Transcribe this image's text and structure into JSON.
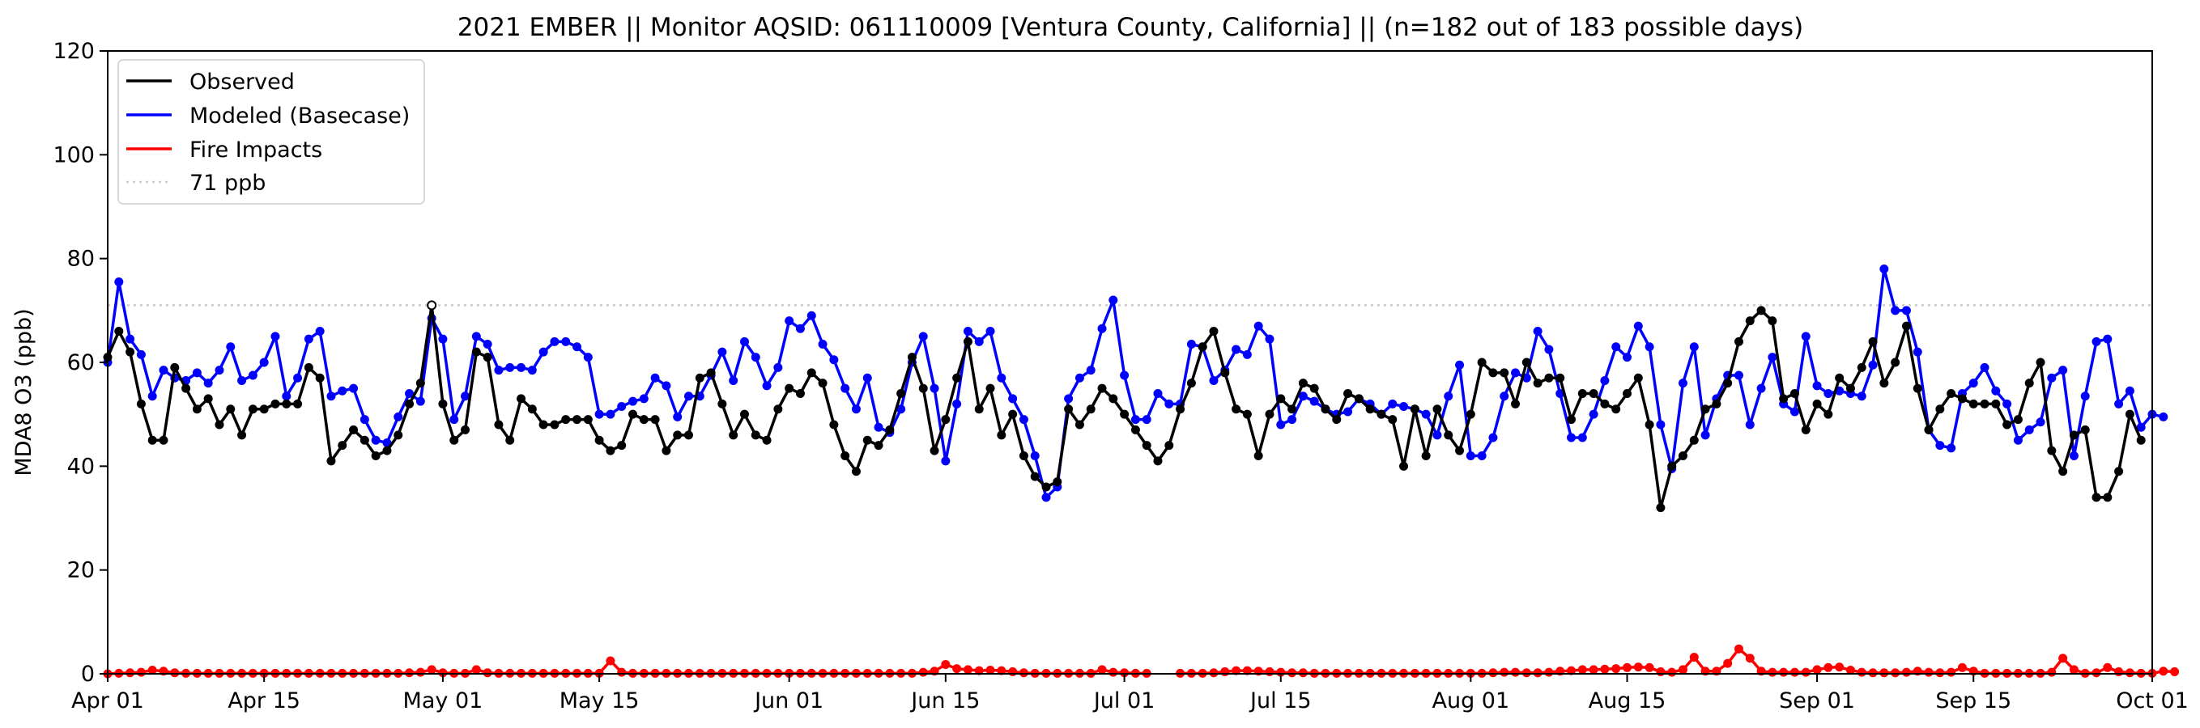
{
  "chart_data": {
    "type": "line",
    "title": "2021 EMBER || Monitor AQSID: 061110009 [Ventura County, California] || (n=182 out of 183 possible days)",
    "xlabel": "",
    "ylabel": "MDA8 O3 (ppb)",
    "x_start": "2021-04-01",
    "x_end": "2021-10-01",
    "xlim": [
      "2021-04-01",
      "2021-10-01"
    ],
    "ylim": [
      0,
      120
    ],
    "yticks": [
      0,
      20,
      40,
      60,
      80,
      100,
      120
    ],
    "xticks": [
      {
        "date": "2021-04-01",
        "label": "Apr 01"
      },
      {
        "date": "2021-04-15",
        "label": "Apr 15"
      },
      {
        "date": "2021-05-01",
        "label": "May 01"
      },
      {
        "date": "2021-05-15",
        "label": "May 15"
      },
      {
        "date": "2021-06-01",
        "label": "Jun 01"
      },
      {
        "date": "2021-06-15",
        "label": "Jun 15"
      },
      {
        "date": "2021-07-01",
        "label": "Jul 01"
      },
      {
        "date": "2021-07-15",
        "label": "Jul 15"
      },
      {
        "date": "2021-08-01",
        "label": "Aug 01"
      },
      {
        "date": "2021-08-15",
        "label": "Aug 15"
      },
      {
        "date": "2021-09-01",
        "label": "Sep 01"
      },
      {
        "date": "2021-09-15",
        "label": "Sep 15"
      },
      {
        "date": "2021-10-01",
        "label": "Oct 01"
      }
    ],
    "grid": false,
    "legend_position": "top-left",
    "threshold": {
      "label": "71 ppb",
      "value": 71,
      "color": "#cccccc"
    },
    "series": [
      {
        "name": "Observed",
        "color": "#000000",
        "values": [
          61,
          66,
          62,
          52,
          45,
          45,
          59,
          55,
          51,
          53,
          48,
          51,
          46,
          51,
          51,
          52,
          52,
          52,
          59,
          57,
          41,
          44,
          47,
          45,
          42,
          43,
          46,
          52,
          56,
          71,
          52,
          45,
          47,
          62,
          61,
          48,
          45,
          53,
          51,
          48,
          48,
          49,
          49,
          49,
          45,
          43,
          44,
          50,
          49,
          49,
          43,
          46,
          46,
          57,
          58,
          52,
          46,
          50,
          46,
          45,
          51,
          55,
          54,
          58,
          56,
          48,
          42,
          39,
          45,
          44,
          47,
          54,
          61,
          55,
          43,
          49,
          57,
          64,
          51,
          55,
          46,
          50,
          42,
          38,
          36,
          37,
          51,
          48,
          51,
          55,
          53,
          50,
          47,
          44,
          41,
          44,
          51,
          56,
          63,
          66,
          58,
          51,
          50,
          42,
          50,
          53,
          51,
          56,
          55,
          51,
          49,
          54,
          53,
          51,
          50,
          49,
          40,
          51,
          42,
          51,
          46,
          43,
          50,
          60,
          58,
          58,
          52,
          60,
          56,
          57,
          57,
          49,
          54,
          54,
          52,
          51,
          54,
          57,
          48,
          32,
          40,
          42,
          45,
          51,
          52,
          56,
          64,
          68,
          70,
          68,
          53,
          54,
          47,
          52,
          50,
          57,
          55,
          59,
          64,
          56,
          60,
          67,
          55,
          47,
          51,
          54,
          53,
          52,
          52,
          52,
          48,
          49,
          56,
          60,
          43,
          39,
          46,
          47,
          34,
          34,
          39,
          50,
          45
        ],
        "missing_index": 181
      },
      {
        "name": "Modeled (Basecase)",
        "color": "#0000ff",
        "values": [
          60,
          75.5,
          64.5,
          61.5,
          53.5,
          58.5,
          57,
          56.5,
          58,
          56,
          58.5,
          63,
          56.5,
          57.5,
          60,
          65,
          53.5,
          57,
          64.5,
          66,
          53.5,
          54.5,
          55,
          49,
          45,
          44.5,
          49.5,
          54,
          52.5,
          68.5,
          64.5,
          49,
          53.5,
          65,
          63.5,
          58.5,
          59,
          59,
          58.5,
          62,
          64,
          64,
          63,
          61,
          50,
          50,
          51.5,
          52.5,
          53,
          57,
          55.5,
          49.5,
          53.5,
          53.5,
          57.5,
          62,
          56.5,
          64,
          61,
          55.5,
          59,
          68,
          66.5,
          69,
          63.5,
          60.5,
          55,
          51,
          57,
          47.5,
          46.5,
          51,
          60,
          65,
          55,
          41,
          52,
          66,
          64,
          66,
          57,
          53,
          49,
          42,
          34,
          36,
          53,
          57,
          58.5,
          66.5,
          72,
          57.5,
          49,
          49,
          54,
          52,
          52,
          63.5,
          63,
          56.5,
          58.5,
          62.5,
          61.5,
          67,
          64.5,
          48,
          49,
          53.5,
          52.5,
          51,
          50,
          50.5,
          53,
          52,
          50,
          52,
          51.5,
          51,
          50,
          46,
          53.5,
          59.5,
          42,
          42,
          45.5,
          53.5,
          58,
          57,
          66,
          62.5,
          54,
          45.5,
          45.5,
          50,
          56.5,
          63,
          61,
          67,
          63,
          48,
          39.5,
          56,
          63,
          46,
          53,
          57.5,
          57.5,
          48,
          55,
          61,
          52,
          50.5,
          65,
          55.5,
          54,
          54.5,
          54,
          53.5,
          59.5,
          78,
          70,
          70,
          62,
          47,
          44,
          43.5,
          54,
          56,
          59,
          54.5,
          52,
          45,
          47,
          48.5,
          57,
          58.5,
          42,
          53.5,
          64,
          64.5,
          52,
          54.5,
          47.5,
          50,
          49.5
        ],
        "missing_index": null
      },
      {
        "name": "Fire Impacts",
        "color": "#ff0000",
        "values": [
          0,
          0.1,
          0.2,
          0.3,
          0.7,
          0.5,
          0.2,
          0.1,
          0.1,
          0.1,
          0.1,
          0.1,
          0.1,
          0.1,
          0.1,
          0.1,
          0.1,
          0.1,
          0.1,
          0.1,
          0.1,
          0.1,
          0.1,
          0.1,
          0.1,
          0.1,
          0.1,
          0.2,
          0.3,
          0.8,
          0.2,
          0.1,
          0.1,
          0.8,
          0.2,
          0.1,
          0.1,
          0.1,
          0.1,
          0.1,
          0.1,
          0.1,
          0.1,
          0.1,
          0.1,
          2.5,
          0.3,
          0.1,
          0.1,
          0.1,
          0.1,
          0.1,
          0.1,
          0.1,
          0.1,
          0.1,
          0.1,
          0.1,
          0.1,
          0.1,
          0.1,
          0.1,
          0.1,
          0.1,
          0.1,
          0.1,
          0.1,
          0.1,
          0.1,
          0.1,
          0.1,
          0.1,
          0.1,
          0.3,
          0.5,
          1.8,
          1,
          0.8,
          0.6,
          0.7,
          0.6,
          0.4,
          0.2,
          0.1,
          0.1,
          0.1,
          0.1,
          0.1,
          0.1,
          0.8,
          0.3,
          0.2,
          0.1,
          0.1,
          null,
          null,
          0.1,
          0.1,
          0.1,
          0.2,
          0.4,
          0.6,
          0.6,
          0.5,
          0.4,
          0.3,
          0.2,
          0.2,
          0.1,
          0.1,
          0.1,
          0.1,
          0.1,
          0.1,
          0.1,
          0.1,
          0.1,
          0.1,
          0.1,
          0.1,
          0.1,
          0.1,
          0.1,
          0.1,
          0.2,
          0.3,
          0.3,
          0.2,
          0.2,
          0.3,
          0.5,
          0.6,
          0.8,
          0.8,
          0.9,
          1,
          1.2,
          1.3,
          1.2,
          0.4,
          0.3,
          0.8,
          3.2,
          0.5,
          0.5,
          2,
          4.8,
          3,
          0.5,
          0.3,
          0.3,
          0.3,
          0.3,
          0.8,
          1.2,
          1.3,
          0.7,
          0.3,
          0.2,
          0.2,
          0.2,
          0.3,
          0.5,
          0.3,
          0.2,
          0.3,
          1.2,
          0.5,
          0.1,
          0.1,
          0.1,
          0.1,
          0.1,
          0.1,
          0.3,
          3,
          0.8,
          0.1,
          0.2,
          1.2,
          0.4,
          0.2,
          0.1,
          0.1,
          0.5,
          0.4
        ]
      }
    ]
  }
}
